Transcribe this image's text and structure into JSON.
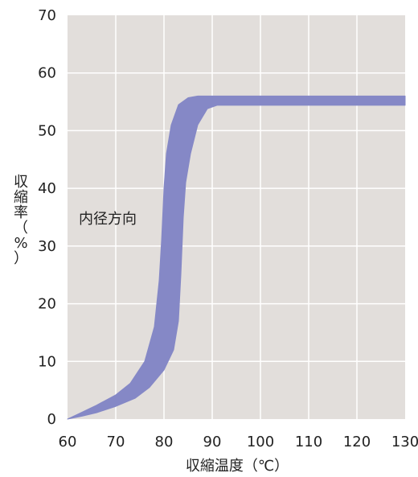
{
  "chart_data": {
    "type": "area",
    "xlabel": "収縮温度（℃）",
    "ylabel": [
      "収",
      "縮",
      "率",
      "（",
      "%",
      "）"
    ],
    "xlim": [
      60,
      130
    ],
    "ylim": [
      0,
      70
    ],
    "xticks": [
      "60",
      "70",
      "80",
      "90",
      "100",
      "110",
      "120",
      "130"
    ],
    "yticks": [
      "0",
      "10",
      "20",
      "30",
      "40",
      "50",
      "60",
      "70"
    ],
    "grid": true,
    "annotation": "内径方向",
    "series": [
      {
        "upper": [
          [
            60,
            0
          ],
          [
            63,
            1.2
          ],
          [
            66,
            2.4
          ],
          [
            70,
            4.2
          ],
          [
            73,
            6.2
          ],
          [
            76,
            10
          ],
          [
            78,
            16
          ],
          [
            79,
            24
          ],
          [
            79.5,
            31
          ],
          [
            80,
            40
          ],
          [
            80.5,
            46
          ],
          [
            81.5,
            51
          ],
          [
            83,
            54.5
          ],
          [
            85,
            55.7
          ],
          [
            87,
            56
          ],
          [
            90,
            56
          ],
          [
            130,
            56
          ]
        ],
        "lower": [
          [
            60,
            0
          ],
          [
            63,
            0.5
          ],
          [
            66,
            1.1
          ],
          [
            70,
            2.2
          ],
          [
            74,
            3.6
          ],
          [
            77,
            5.5
          ],
          [
            80,
            8.5
          ],
          [
            82,
            12
          ],
          [
            83,
            17
          ],
          [
            83.5,
            25
          ],
          [
            84,
            35
          ],
          [
            84.5,
            41
          ],
          [
            85.5,
            46
          ],
          [
            87,
            51
          ],
          [
            89,
            53.8
          ],
          [
            91,
            54.4
          ],
          [
            130,
            54.4
          ]
        ],
        "color": "#8588c6"
      }
    ],
    "background": "#e2dedb",
    "gridColor": "#ffffff"
  }
}
